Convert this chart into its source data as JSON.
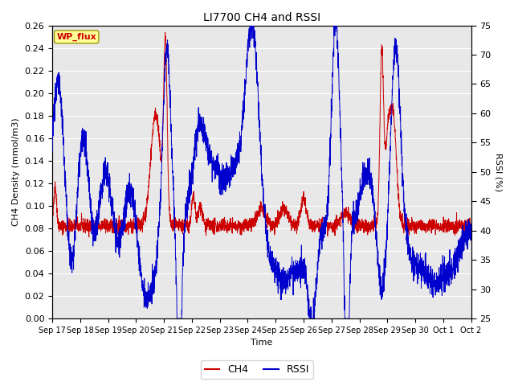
{
  "title": "LI7700 CH4 and RSSI",
  "xlabel": "Time",
  "ylabel_left": "CH4 Density (mmol/m3)",
  "ylabel_right": "RSSI (%)",
  "ylim_left": [
    0.0,
    0.26
  ],
  "ylim_right": [
    25,
    75
  ],
  "yticks_left": [
    0.0,
    0.02,
    0.04,
    0.06,
    0.08,
    0.1,
    0.12,
    0.14,
    0.16,
    0.18,
    0.2,
    0.22,
    0.24,
    0.26
  ],
  "yticks_right": [
    25,
    30,
    35,
    40,
    45,
    50,
    55,
    60,
    65,
    70,
    75
  ],
  "ch4_color": "#cc0000",
  "rssi_color": "#0000cc",
  "bg_color": "#e8e8e8",
  "fig_bg": "#ffffff",
  "grid_color": "#ffffff",
  "annotation_text": "WP_flux",
  "annotation_color": "#cc0000",
  "annotation_bg": "#ffff99",
  "annotation_edge": "#999900",
  "xtick_labels": [
    "Sep 17",
    "Sep 18",
    "Sep 19",
    "Sep 20",
    "Sep 21",
    "Sep 22",
    "Sep 23",
    "Sep 24",
    "Sep 25",
    "Sep 26",
    "Sep 27",
    "Sep 28",
    "Sep 29",
    "Sep 30",
    "Oct 1",
    "Oct 2"
  ],
  "num_points": 3000,
  "num_days": 15
}
